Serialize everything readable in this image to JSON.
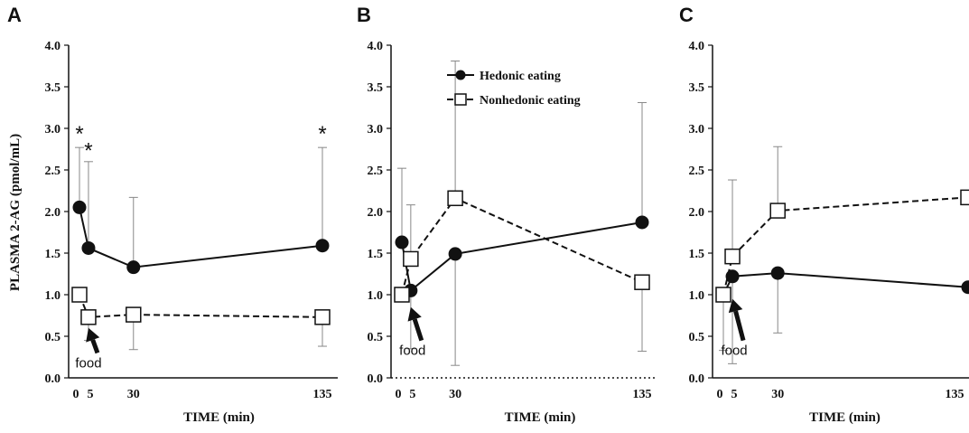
{
  "ylabel": "PLASMA 2-AG (pmol/mL)",
  "xlabel": "TIME (min)",
  "legend": {
    "hedonic": "Hedonic eating",
    "nonhedonic": "Nonhedonic eating"
  },
  "chart_data": [
    {
      "type": "line",
      "panel": "A",
      "x": [
        0,
        5,
        30,
        135
      ],
      "xticks": [
        "0",
        "5",
        "30",
        "135"
      ],
      "ylim": [
        0,
        4.0
      ],
      "yticks": [
        "0.0",
        "0.5",
        "1.0",
        "1.5",
        "2.0",
        "2.5",
        "3.0",
        "3.5",
        "4.0"
      ],
      "xlabel": "TIME (min)",
      "ylabel": "PLASMA 2-AG (pmol/mL)",
      "series": [
        {
          "name": "Hedonic eating",
          "marker": "filled-circle",
          "line": "solid",
          "values": [
            2.05,
            1.56,
            1.33,
            1.59
          ],
          "err_high": [
            2.77,
            2.6,
            2.17,
            2.77
          ],
          "err_low": [
            null,
            null,
            null,
            null
          ]
        },
        {
          "name": "Nonhedonic eating",
          "marker": "open-square",
          "line": "dashed",
          "values": [
            1.0,
            0.73,
            0.76,
            0.73
          ],
          "err_high": [
            null,
            null,
            null,
            null
          ],
          "err_low": [
            null,
            0.45,
            0.34,
            0.38
          ]
        }
      ],
      "annotations": [
        {
          "text": "*",
          "x": 0,
          "y": 3.0
        },
        {
          "text": "*",
          "x": 5,
          "y": 2.8
        },
        {
          "text": "*",
          "x": 135,
          "y": 3.0
        },
        {
          "text": "food",
          "arrow_tip": [
            5,
            0.6
          ],
          "arrow_tail": [
            7,
            0.3
          ]
        }
      ]
    },
    {
      "type": "line",
      "panel": "B",
      "x": [
        0,
        5,
        30,
        135
      ],
      "xticks": [
        "0",
        "5",
        "30",
        "135"
      ],
      "ylim": [
        0,
        4.0
      ],
      "yticks": [
        "0.0",
        "0.5",
        "1.0",
        "1.5",
        "2.0",
        "2.5",
        "3.0",
        "3.5",
        "4.0"
      ],
      "xlabel": "TIME (min)",
      "series": [
        {
          "name": "Hedonic eating",
          "marker": "filled-circle",
          "line": "solid",
          "values": [
            1.63,
            1.05,
            1.49,
            1.87
          ],
          "err_high": [
            2.52,
            null,
            null,
            3.31
          ],
          "err_low": [
            null,
            0.35,
            0.15,
            null
          ]
        },
        {
          "name": "Nonhedonic eating",
          "marker": "open-square",
          "line": "dashed",
          "values": [
            1.0,
            1.43,
            2.16,
            1.15
          ],
          "err_high": [
            null,
            2.08,
            3.81,
            null
          ],
          "err_low": [
            null,
            null,
            null,
            0.32
          ]
        }
      ],
      "annotations": [
        {
          "text": "food",
          "arrow_tip": [
            5,
            0.85
          ],
          "arrow_tail": [
            8,
            0.45
          ]
        }
      ]
    },
    {
      "type": "line",
      "panel": "C",
      "x": [
        0,
        5,
        30,
        135
      ],
      "xticks": [
        "0",
        "5",
        "30",
        "135"
      ],
      "ylim": [
        0,
        4.0
      ],
      "yticks": [
        "0.0",
        "0.5",
        "1.0",
        "1.5",
        "2.0",
        "2.5",
        "3.0",
        "3.5",
        "4.0"
      ],
      "xlabel": "TIME (min)",
      "series": [
        {
          "name": "Hedonic eating",
          "marker": "filled-circle",
          "line": "solid",
          "values": [
            1.0,
            1.22,
            1.26,
            1.09
          ],
          "err_high": [
            null,
            null,
            null,
            null
          ],
          "err_low": [
            null,
            0.17,
            0.54,
            null
          ]
        },
        {
          "name": "Nonhedonic eating",
          "marker": "open-square",
          "line": "dashed",
          "values": [
            1.0,
            1.46,
            2.01,
            2.17
          ],
          "err_high": [
            null,
            2.38,
            2.78,
            null
          ],
          "err_low": [
            0.33,
            null,
            null,
            null
          ]
        }
      ],
      "annotations": [
        {
          "text": "food",
          "arrow_tip": [
            5,
            0.95
          ],
          "arrow_tail": [
            8,
            0.45
          ]
        }
      ]
    }
  ]
}
